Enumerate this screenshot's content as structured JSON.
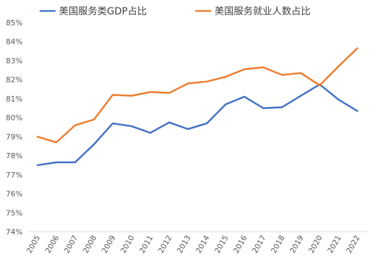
{
  "chart_data": {
    "type": "line",
    "title": "",
    "xlabel": "",
    "ylabel": "",
    "x": [
      "2005",
      "2006",
      "2007",
      "2008",
      "2009",
      "2010",
      "2011",
      "2012",
      "2013",
      "2014",
      "2015",
      "2016",
      "2017",
      "2018",
      "2019",
      "2020",
      "2021",
      "2022"
    ],
    "series": [
      {
        "name": "美国服务类GDP占比",
        "color": "#4472C4",
        "values": [
          77.5,
          77.65,
          77.65,
          78.6,
          79.7,
          79.55,
          79.2,
          79.75,
          79.4,
          79.7,
          80.7,
          81.1,
          80.5,
          80.55,
          81.15,
          81.75,
          80.95,
          80.35
        ]
      },
      {
        "name": "美国服务就业人数占比",
        "color": "#ED7D31",
        "values": [
          79.0,
          78.7,
          79.6,
          79.9,
          81.2,
          81.15,
          81.35,
          81.3,
          81.8,
          81.9,
          82.15,
          82.55,
          82.65,
          82.25,
          82.35,
          81.7,
          82.7,
          83.65
        ]
      }
    ],
    "ylim": [
      74,
      85
    ],
    "yticks": [
      74,
      75,
      76,
      77,
      78,
      79,
      80,
      81,
      82,
      83,
      84,
      85
    ],
    "y_tick_suffix": "%",
    "grid": false,
    "legend_position": "top"
  }
}
